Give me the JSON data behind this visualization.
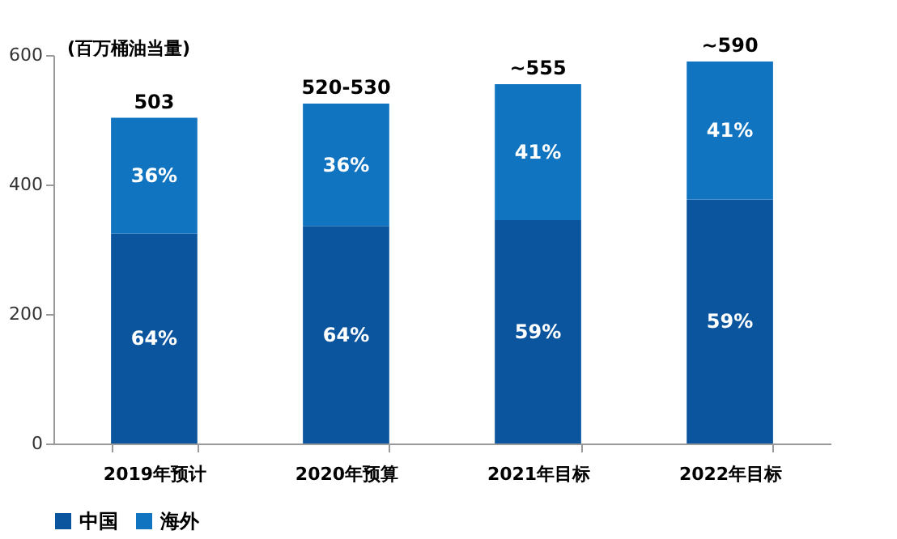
{
  "chart_data": {
    "type": "bar",
    "stacked": true,
    "ylabel": "(百万桶油当量)",
    "categories": [
      "2019年预计",
      "2020年预算",
      "2021年目标",
      "2022年目标"
    ],
    "series": [
      {
        "name": "中国",
        "color": "#0b559f",
        "values": [
          324,
          336,
          345,
          377
        ]
      },
      {
        "name": "海外",
        "color": "#1174c0",
        "values": [
          179,
          189,
          210,
          213
        ]
      }
    ],
    "annotations": [
      "64%",
      "64%",
      "59%",
      "59%",
      "36%",
      "36%",
      "41%",
      "41%"
    ],
    "totals": [
      "503",
      "520-530",
      "~555",
      "~590"
    ],
    "ylim": [
      0,
      600
    ],
    "yticks": [
      0,
      200,
      400,
      600
    ],
    "grid": false,
    "legend": "bottom"
  }
}
